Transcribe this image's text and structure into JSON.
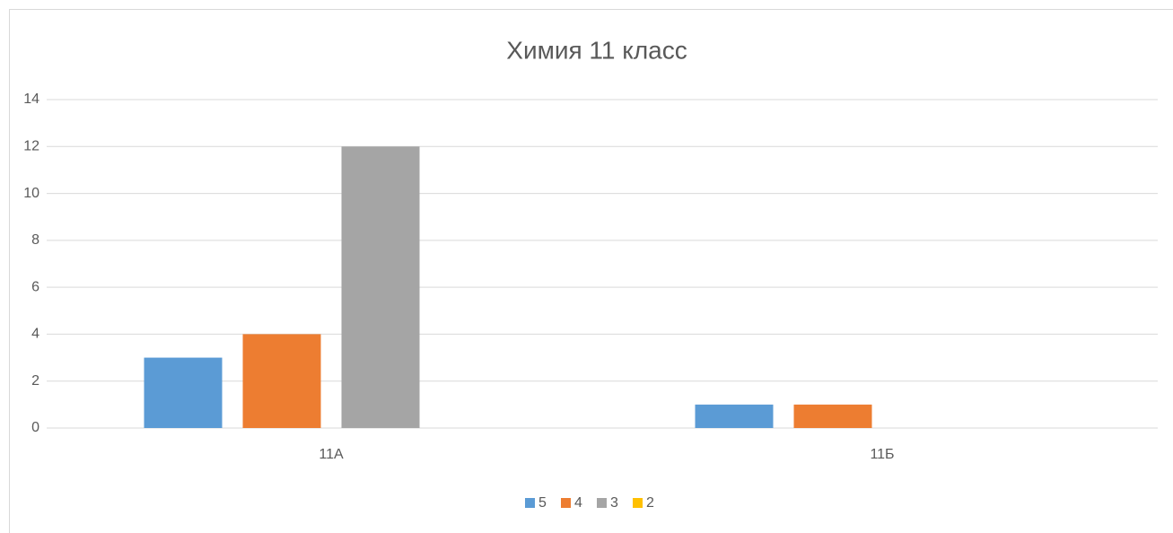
{
  "chart_data": {
    "type": "bar",
    "title": "Химия 11 класс",
    "categories": [
      "11А",
      "11Б"
    ],
    "series": [
      {
        "name": "5",
        "color": "#5b9bd5",
        "values": [
          3,
          1
        ]
      },
      {
        "name": "4",
        "color": "#ed7d31",
        "values": [
          4,
          1
        ]
      },
      {
        "name": "3",
        "color": "#a5a5a5",
        "values": [
          12,
          0
        ]
      },
      {
        "name": "2",
        "color": "#ffc000",
        "values": [
          0,
          0
        ]
      }
    ],
    "ylim": [
      0,
      14
    ],
    "yticks": [
      0,
      2,
      4,
      6,
      8,
      10,
      12,
      14
    ],
    "grid": true,
    "legend": "bottom"
  }
}
